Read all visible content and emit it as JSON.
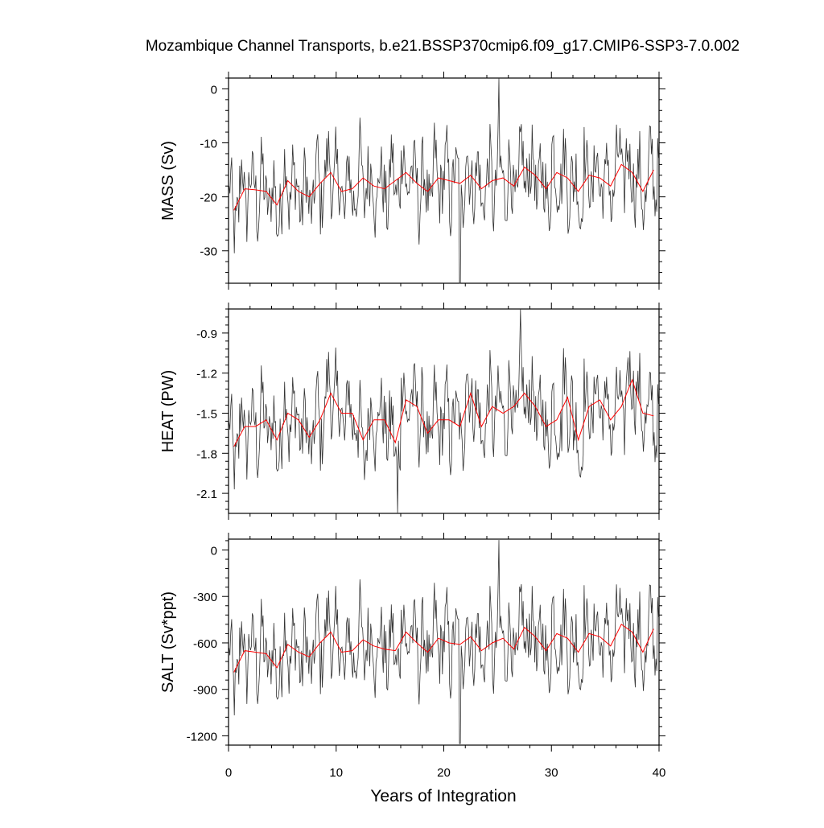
{
  "chart_data": {
    "type": "line",
    "title": "Mozambique Channel Transports, b.e21.BSSP370cmip6.f09_g17.CMIP6-SSP3-7.0.002",
    "xlabel": "Years of Integration",
    "xlim": [
      0,
      40
    ],
    "xticks": [
      0,
      10,
      20,
      30,
      40
    ],
    "grid": false,
    "series_colors": {
      "monthly": "#333333",
      "annual_mean": "#ff0000"
    },
    "panels": [
      {
        "ylabel": "MASS (Sv)",
        "ylim": [
          -36,
          2
        ],
        "yticks": [
          0,
          -10,
          -20,
          -30
        ],
        "ytick_labels": [
          "0",
          "-10",
          "-20",
          "-30"
        ],
        "annual_x": [
          0.5,
          1.5,
          2.5,
          3.5,
          4.5,
          5.5,
          6.5,
          7.5,
          8.5,
          9.5,
          10.5,
          11.5,
          12.5,
          13.5,
          14.5,
          15.5,
          16.5,
          17.5,
          18.5,
          19.5,
          20.5,
          21.5,
          22.5,
          23.5,
          24.5,
          25.5,
          26.5,
          27.5,
          28.5,
          29.5,
          30.5,
          31.5,
          32.5,
          33.5,
          34.5,
          35.5,
          36.5,
          37.5,
          38.5,
          39.5
        ],
        "annual_mean": [
          -22.5,
          -18.5,
          -18.7,
          -19.0,
          -21.5,
          -17.0,
          -19.0,
          -20.0,
          -17.5,
          -15.5,
          -19.0,
          -18.5,
          -16.5,
          -18.0,
          -18.5,
          -17.0,
          -15.5,
          -17.5,
          -19.0,
          -16.5,
          -17.0,
          -17.5,
          -16.0,
          -18.5,
          -17.0,
          -16.5,
          -18.0,
          -14.5,
          -16.0,
          -18.5,
          -15.5,
          -16.5,
          -19.0,
          -16.0,
          -16.5,
          -18.0,
          -14.0,
          -15.5,
          -19.0,
          -15.0
        ],
        "spikes": {
          "peak_max": 2.0,
          "peak_max_year": 25.1,
          "trough_min": -36.0,
          "trough_min_year": 21.5
        }
      },
      {
        "ylabel": "HEAT (PW)",
        "ylim": [
          -2.25,
          -0.72
        ],
        "yticks": [
          -0.9,
          -1.2,
          -1.5,
          -1.8,
          -2.1
        ],
        "ytick_labels": [
          "-0.9",
          "-1.2",
          "-1.5",
          "-1.8",
          "-2.1"
        ],
        "annual_x": [
          0.5,
          1.5,
          2.5,
          3.5,
          4.5,
          5.5,
          6.5,
          7.5,
          8.5,
          9.5,
          10.5,
          11.5,
          12.5,
          13.5,
          14.5,
          15.5,
          16.5,
          17.5,
          18.5,
          19.5,
          20.5,
          21.5,
          22.5,
          23.5,
          24.5,
          25.5,
          26.5,
          27.5,
          28.5,
          29.5,
          30.5,
          31.5,
          32.5,
          33.5,
          34.5,
          35.5,
          36.5,
          37.5,
          38.5,
          39.5
        ],
        "annual_mean": [
          -1.75,
          -1.6,
          -1.6,
          -1.55,
          -1.7,
          -1.5,
          -1.55,
          -1.68,
          -1.55,
          -1.35,
          -1.5,
          -1.5,
          -1.7,
          -1.55,
          -1.55,
          -1.72,
          -1.4,
          -1.45,
          -1.65,
          -1.55,
          -1.55,
          -1.6,
          -1.35,
          -1.6,
          -1.45,
          -1.5,
          -1.45,
          -1.35,
          -1.45,
          -1.6,
          -1.55,
          -1.38,
          -1.7,
          -1.45,
          -1.4,
          -1.55,
          -1.45,
          -1.25,
          -1.5,
          -1.52
        ],
        "spikes": {
          "peak_max": -0.72,
          "peak_max_year": 27.1,
          "trough_min": -2.25,
          "trough_min_year": 15.7
        }
      },
      {
        "ylabel": "SALT (Sv*ppt)",
        "ylim": [
          -1260,
          70
        ],
        "yticks": [
          0,
          -300,
          -600,
          -900,
          -1200
        ],
        "ytick_labels": [
          "0",
          "-300",
          "-600",
          "-900",
          "-1200"
        ],
        "annual_x": [
          0.5,
          1.5,
          2.5,
          3.5,
          4.5,
          5.5,
          6.5,
          7.5,
          8.5,
          9.5,
          10.5,
          11.5,
          12.5,
          13.5,
          14.5,
          15.5,
          16.5,
          17.5,
          18.5,
          19.5,
          20.5,
          21.5,
          22.5,
          23.5,
          24.5,
          25.5,
          26.5,
          27.5,
          28.5,
          29.5,
          30.5,
          31.5,
          32.5,
          33.5,
          34.5,
          35.5,
          36.5,
          37.5,
          38.5,
          39.5
        ],
        "annual_mean": [
          -790,
          -650,
          -660,
          -670,
          -760,
          -610,
          -660,
          -690,
          -600,
          -530,
          -660,
          -650,
          -580,
          -620,
          -640,
          -650,
          -530,
          -600,
          -660,
          -570,
          -600,
          -610,
          -560,
          -650,
          -600,
          -570,
          -640,
          -500,
          -560,
          -650,
          -540,
          -570,
          -660,
          -540,
          -560,
          -620,
          -480,
          -530,
          -660,
          -510
        ],
        "spikes": {
          "peak_max": 65,
          "peak_max_year": 25.1,
          "trough_min": -1250,
          "trough_min_year": 21.5
        }
      }
    ]
  }
}
